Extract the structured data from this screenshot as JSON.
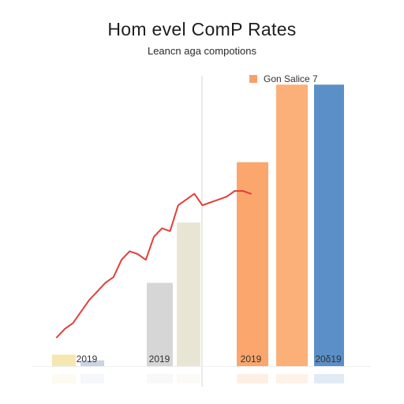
{
  "chart_data": {
    "type": "bar",
    "title": "Hom evel ComP Rates",
    "subtitle": "Leancn aga compotions",
    "legend": {
      "label": "Gon Salice 7",
      "color": "#f5a26a",
      "placement": "top-right"
    },
    "xlabel": "",
    "ylabel": "",
    "ylim": [
      0,
      100
    ],
    "grid": false,
    "tick_labels": [
      "2019",
      "2019",
      "2019",
      "20δ19"
    ],
    "bars": [
      {
        "value": 4,
        "color": "#f6e7b0"
      },
      {
        "value": 2,
        "color": "#c9d3e6"
      },
      {
        "value": 29,
        "color": "#d6d6d6"
      },
      {
        "value": 50,
        "color": "#e9e5d4"
      },
      {
        "value": 71,
        "color": "#fba66d"
      },
      {
        "value": 98,
        "color": "#fbb07a"
      },
      {
        "value": 98,
        "color": "#5b8fc7"
      }
    ],
    "line": {
      "color": "#e0403a",
      "values": [
        10,
        13,
        15,
        19,
        23,
        26,
        29,
        31,
        37,
        40,
        39,
        37,
        45,
        48,
        47,
        56,
        58,
        60,
        56,
        57,
        58,
        59,
        61,
        61,
        60
      ]
    }
  }
}
